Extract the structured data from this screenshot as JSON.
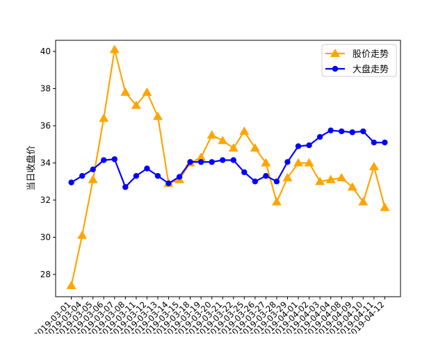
{
  "chart_data": {
    "type": "line",
    "title": "",
    "xlabel": "",
    "ylabel": "当日收盘价",
    "ylim": [
      26.8,
      40.6
    ],
    "yticks": [
      28,
      30,
      32,
      34,
      36,
      38,
      40
    ],
    "grid": false,
    "legend_position": "top-right",
    "categories": [
      "2019-03-01",
      "2019-03-04",
      "2019-03-05",
      "2019-03-06",
      "2019-03-07",
      "2019-03-08",
      "2019-03-11",
      "2019-03-12",
      "2019-03-13",
      "2019-03-14",
      "2019-03-15",
      "2019-03-18",
      "2019-03-19",
      "2019-03-20",
      "2019-03-21",
      "2019-03-22",
      "2019-03-25",
      "2019-03-26",
      "2019-03-27",
      "2019-03-28",
      "2019-03-29",
      "2019-04-01",
      "2019-04-02",
      "2019-04-03",
      "2019-04-04",
      "2019-04-08",
      "2019-04-09",
      "2019-04-10",
      "2019-04-11",
      "2019-04-12"
    ],
    "series": [
      {
        "name": "股价走势",
        "color": "#ffa500",
        "marker": "triangle",
        "values": [
          27.4,
          30.1,
          33.1,
          36.4,
          40.1,
          37.8,
          37.1,
          37.8,
          36.5,
          32.9,
          33.1,
          34.0,
          34.3,
          35.5,
          35.2,
          34.8,
          35.7,
          34.8,
          34.0,
          31.9,
          33.2,
          34.0,
          34.0,
          33.0,
          33.1,
          33.2,
          32.7,
          31.9,
          33.8,
          31.6
        ]
      },
      {
        "name": "大盘走势",
        "color": "#0000ff",
        "marker": "circle",
        "values": [
          32.95,
          33.3,
          33.65,
          34.15,
          34.2,
          32.7,
          33.3,
          33.7,
          33.3,
          32.9,
          33.25,
          34.05,
          34.05,
          34.05,
          34.15,
          34.15,
          33.5,
          33.0,
          33.3,
          33.0,
          34.05,
          34.9,
          34.95,
          35.4,
          35.75,
          35.7,
          35.65,
          35.7,
          35.1,
          35.1
        ]
      }
    ]
  }
}
